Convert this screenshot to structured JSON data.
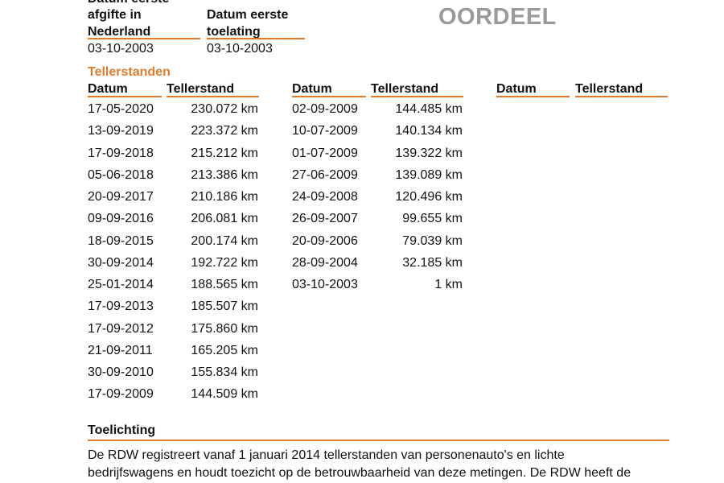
{
  "header": {
    "afgifte_label_line0": "Datum eerste",
    "afgifte_label_line1": "afgifte in",
    "afgifte_label_line2": "Nederland",
    "afgifte_value": "03-10-2003",
    "toelating_label_line1": "Datum eerste",
    "toelating_label_line2": "toelating",
    "toelating_value": "03-10-2003",
    "oordeel": "OORDEEL"
  },
  "tellerstanden": {
    "title": "Tellerstanden",
    "col_datum": "Datum",
    "col_tellerstand": "Tellerstand",
    "columns": [
      [
        {
          "date": "17-05-2020",
          "km": "230.072 km"
        },
        {
          "date": "13-09-2019",
          "km": "223.372 km"
        },
        {
          "date": "17-09-2018",
          "km": "215.212 km"
        },
        {
          "date": "05-06-2018",
          "km": "213.386 km"
        },
        {
          "date": "20-09-2017",
          "km": "210.186 km"
        },
        {
          "date": "09-09-2016",
          "km": "206.081 km"
        },
        {
          "date": "18-09-2015",
          "km": "200.174 km"
        },
        {
          "date": "30-09-2014",
          "km": "192.722 km"
        },
        {
          "date": "25-01-2014",
          "km": "188.565 km"
        },
        {
          "date": "17-09-2013",
          "km": "185.507 km"
        },
        {
          "date": "17-09-2012",
          "km": "175.860 km"
        },
        {
          "date": "21-09-2011",
          "km": "165.205 km"
        },
        {
          "date": "30-09-2010",
          "km": "155.834 km"
        },
        {
          "date": "17-09-2009",
          "km": "144.509 km"
        }
      ],
      [
        {
          "date": "02-09-2009",
          "km": "144.485 km"
        },
        {
          "date": "10-07-2009",
          "km": "140.134 km"
        },
        {
          "date": "01-07-2009",
          "km": "139.322 km"
        },
        {
          "date": "27-06-2009",
          "km": "139.089 km"
        },
        {
          "date": "24-09-2008",
          "km": "120.496 km"
        },
        {
          "date": "26-09-2007",
          "km": "99.655 km"
        },
        {
          "date": "20-09-2006",
          "km": "79.039 km"
        },
        {
          "date": "28-09-2004",
          "km": "32.185 km"
        },
        {
          "date": "03-10-2003",
          "km": "1 km"
        }
      ],
      []
    ]
  },
  "toelichting": {
    "title": "Toelichting",
    "line1": "De RDW registreert vanaf 1 januari 2014 tellerstanden van personenauto's en lichte",
    "line2": "bedrijfswagens en houdt toezicht op de betrouwbaarheid van deze metingen. De RDW heeft de"
  }
}
